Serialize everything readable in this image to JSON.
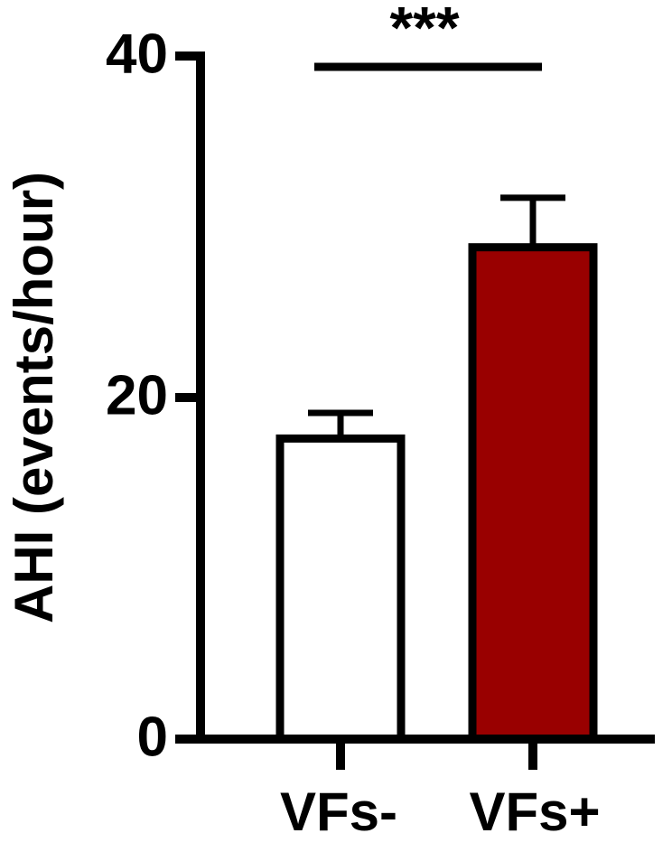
{
  "chart_data": {
    "type": "bar",
    "y_label": "AHI (events/hour)",
    "categories": [
      "VFs-",
      "VFs+"
    ],
    "values": [
      17.6,
      28.8
    ],
    "errors": [
      1.5,
      2.9
    ],
    "colors": [
      "#ffffff",
      "#990000"
    ],
    "ylim": [
      0,
      40
    ],
    "yticks": [
      0,
      20,
      40
    ],
    "annotation": "***"
  }
}
